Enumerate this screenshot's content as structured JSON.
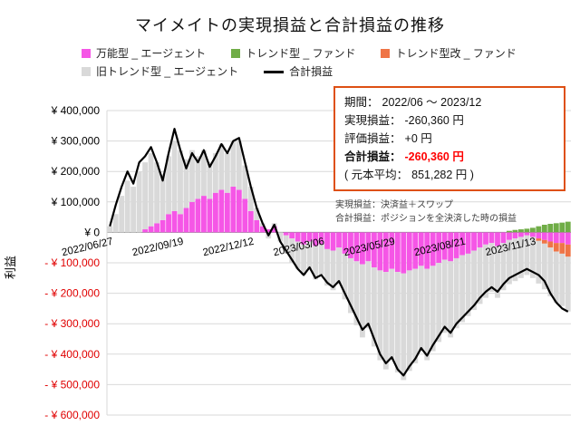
{
  "title": "マイメイトの実現損益と合計損益の推移",
  "colors": {
    "universal_pink": "#f556e6",
    "trend_green": "#70ad47",
    "trend_kai_orange": "#ef7446",
    "old_trend_gray": "#d9d9d9",
    "total_line": "#000000",
    "gridline": "#d9d9d9",
    "zero_line": "#8c8c8c",
    "negative_tick": "#e00000",
    "total_value_red": "#ff0000",
    "info_border": "#de5014"
  },
  "legend": {
    "items": [
      {
        "label": "万能型 _ エージェント",
        "color": "#f556e6",
        "type": "box"
      },
      {
        "label": "トレンド型 _ ファンド",
        "color": "#70ad47",
        "type": "box"
      },
      {
        "label": "トレンド型改 _ ファンド",
        "color": "#ef7446",
        "type": "box"
      },
      {
        "label": "旧トレンド型 _ エージェント",
        "color": "#d9d9d9",
        "type": "box"
      },
      {
        "label": "合計損益",
        "color": "#000000",
        "type": "line"
      }
    ]
  },
  "info_box": {
    "rows": [
      {
        "label": "期間：",
        "value": "2022/06 ～ 2023/12"
      },
      {
        "label": "実現損益：",
        "value": "-260,360 円"
      },
      {
        "label": "評価損益：",
        "value": "+0 円"
      },
      {
        "label": "合計損益：",
        "value": "-260,360 円"
      },
      {
        "label": "( 元本平均：",
        "value": "851,282 円 )"
      }
    ]
  },
  "footnotes": [
    "実現損益：決済益＋スワップ",
    "合計損益：ポジションを全決済した時の損益"
  ],
  "chart_data": {
    "type": "bar",
    "stacked": true,
    "title": "マイメイトの実現損益と合計損益の推移",
    "xlabel": "",
    "ylabel": "利益",
    "ylim": [
      -600000,
      400000
    ],
    "n_points": 79,
    "x_tick_indices": [
      0,
      12,
      24,
      36,
      48,
      60,
      72
    ],
    "x_tick_labels": [
      "2022/06/27",
      "2022/09/19",
      "2022/12/12",
      "2023/03/06",
      "2023/05/29",
      "2023/08/21",
      "2023/11/13"
    ],
    "y_ticks": [
      {
        "value": 400000,
        "label": "¥ 400,000"
      },
      {
        "value": 300000,
        "label": "¥ 300,000"
      },
      {
        "value": 200000,
        "label": "¥ 200,000"
      },
      {
        "value": 100000,
        "label": "¥ 100,000"
      },
      {
        "value": 0,
        "label": "¥ 0"
      },
      {
        "value": -100000,
        "label": "- ¥ 100,000"
      },
      {
        "value": -200000,
        "label": "- ¥ 200,000"
      },
      {
        "value": -300000,
        "label": "- ¥ 300,000"
      },
      {
        "value": -400000,
        "label": "- ¥ 400,000"
      },
      {
        "value": -500000,
        "label": "- ¥ 500,000"
      },
      {
        "value": -600000,
        "label": "- ¥ 600,000"
      }
    ],
    "series": [
      {
        "name": "万能型 _ エージェント",
        "type": "bar",
        "color": "#f556e6",
        "values": [
          0,
          0,
          0,
          0,
          0,
          0,
          10000,
          20000,
          30000,
          40000,
          60000,
          70000,
          60000,
          80000,
          100000,
          110000,
          120000,
          110000,
          130000,
          140000,
          130000,
          150000,
          140000,
          110000,
          70000,
          40000,
          20000,
          10000,
          20000,
          0,
          -10000,
          -20000,
          -30000,
          -40000,
          -30000,
          -45000,
          -40000,
          -55000,
          -60000,
          -50000,
          -70000,
          -85000,
          -95000,
          -105000,
          -95000,
          -115000,
          -125000,
          -130000,
          -120000,
          -130000,
          -135000,
          -125000,
          -120000,
          -110000,
          -120000,
          -110000,
          -100000,
          -90000,
          -95000,
          -85000,
          -75000,
          -70000,
          -60000,
          -50000,
          -40000,
          -35000,
          -45000,
          -35000,
          -25000,
          -20000,
          -15000,
          -10000,
          -15000,
          -20000,
          -25000,
          -30000,
          -35000,
          -35000,
          -40000
        ]
      },
      {
        "name": "トレンド型 _ ファンド",
        "type": "bar",
        "color": "#70ad47",
        "values": [
          0,
          0,
          0,
          0,
          0,
          0,
          0,
          0,
          0,
          0,
          0,
          0,
          0,
          0,
          0,
          0,
          0,
          0,
          0,
          0,
          0,
          0,
          0,
          0,
          0,
          0,
          0,
          0,
          0,
          0,
          0,
          0,
          0,
          0,
          0,
          0,
          0,
          0,
          0,
          0,
          0,
          0,
          0,
          0,
          0,
          0,
          0,
          0,
          0,
          0,
          0,
          0,
          0,
          0,
          0,
          0,
          0,
          0,
          0,
          0,
          0,
          0,
          0,
          0,
          0,
          0,
          0,
          0,
          5000,
          8000,
          10000,
          12000,
          15000,
          20000,
          25000,
          28000,
          30000,
          32000,
          35000
        ]
      },
      {
        "name": "トレンド型改 _ ファンド",
        "type": "bar",
        "color": "#ef7446",
        "values": [
          0,
          0,
          0,
          0,
          0,
          0,
          0,
          0,
          0,
          0,
          0,
          0,
          0,
          0,
          0,
          0,
          0,
          0,
          0,
          0,
          0,
          0,
          0,
          0,
          0,
          0,
          0,
          0,
          0,
          0,
          0,
          0,
          0,
          0,
          0,
          0,
          0,
          0,
          0,
          0,
          0,
          0,
          0,
          0,
          0,
          0,
          0,
          0,
          0,
          0,
          0,
          0,
          0,
          0,
          0,
          0,
          0,
          0,
          0,
          0,
          0,
          0,
          0,
          0,
          0,
          0,
          0,
          0,
          0,
          0,
          0,
          0,
          0,
          -8000,
          -12000,
          -20000,
          -28000,
          -35000,
          -40000
        ]
      },
      {
        "name": "旧トレンド型 _ エージェント",
        "type": "bar",
        "color": "#d9d9d9",
        "values": [
          20000,
          60000,
          120000,
          170000,
          150000,
          200000,
          220000,
          240000,
          200000,
          150000,
          190000,
          230000,
          210000,
          160000,
          170000,
          140000,
          150000,
          120000,
          130000,
          150000,
          130000,
          150000,
          160000,
          110000,
          80000,
          40000,
          10000,
          -20000,
          10000,
          -30000,
          -60000,
          -80000,
          -90000,
          -100000,
          -90000,
          -110000,
          -100000,
          -120000,
          -130000,
          -120000,
          -150000,
          -180000,
          -210000,
          -240000,
          -220000,
          -260000,
          -295000,
          -320000,
          -300000,
          -330000,
          -350000,
          -330000,
          -310000,
          -280000,
          -300000,
          -280000,
          -260000,
          -240000,
          -250000,
          -230000,
          -220000,
          -205000,
          -195000,
          -185000,
          -175000,
          -160000,
          -170000,
          -155000,
          -145000,
          -140000,
          -135000,
          -130000,
          -135000,
          -140000,
          -150000,
          -160000,
          -168000,
          -172000,
          -180000
        ]
      },
      {
        "name": "合計損益",
        "type": "line",
        "color": "#000000",
        "values": [
          20000,
          90000,
          150000,
          200000,
          160000,
          230000,
          250000,
          280000,
          230000,
          170000,
          260000,
          340000,
          270000,
          210000,
          260000,
          230000,
          270000,
          215000,
          250000,
          290000,
          260000,
          300000,
          310000,
          230000,
          150000,
          80000,
          30000,
          -10000,
          25000,
          -30000,
          -60000,
          -90000,
          -120000,
          -140000,
          -115000,
          -150000,
          -140000,
          -165000,
          -180000,
          -160000,
          -200000,
          -240000,
          -280000,
          -320000,
          -300000,
          -350000,
          -400000,
          -430000,
          -410000,
          -450000,
          -470000,
          -440000,
          -415000,
          -380000,
          -405000,
          -370000,
          -340000,
          -310000,
          -330000,
          -300000,
          -280000,
          -260000,
          -240000,
          -215000,
          -195000,
          -180000,
          -195000,
          -170000,
          -150000,
          -140000,
          -130000,
          -120000,
          -130000,
          -140000,
          -160000,
          -200000,
          -230000,
          -250000,
          -260360
        ]
      }
    ]
  }
}
